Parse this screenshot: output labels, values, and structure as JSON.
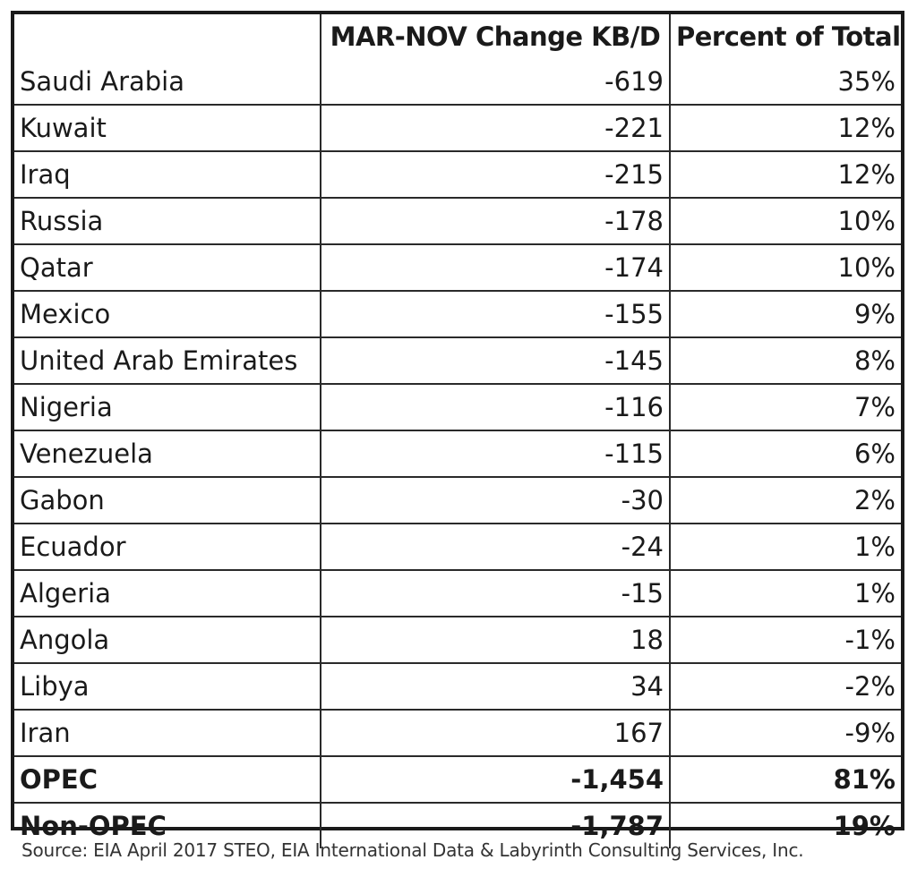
{
  "chart_data": {
    "type": "table",
    "columns": [
      "",
      "MAR-NOV Change KB/D",
      "Percent of Total"
    ],
    "rows": [
      {
        "country": "Saudi Arabia",
        "change": "-619",
        "percent": "35%"
      },
      {
        "country": "Kuwait",
        "change": "-221",
        "percent": "12%"
      },
      {
        "country": "Iraq",
        "change": "-215",
        "percent": "12%"
      },
      {
        "country": "Russia",
        "change": "-178",
        "percent": "10%"
      },
      {
        "country": "Qatar",
        "change": "-174",
        "percent": "10%"
      },
      {
        "country": "Mexico",
        "change": "-155",
        "percent": "9%"
      },
      {
        "country": "United Arab Emirates",
        "change": "-145",
        "percent": "8%"
      },
      {
        "country": "Nigeria",
        "change": "-116",
        "percent": "7%"
      },
      {
        "country": "Venezuela",
        "change": "-115",
        "percent": "6%"
      },
      {
        "country": "Gabon",
        "change": "-30",
        "percent": "2%"
      },
      {
        "country": "Ecuador",
        "change": "-24",
        "percent": "1%"
      },
      {
        "country": "Algeria",
        "change": "-15",
        "percent": "1%"
      },
      {
        "country": "Angola",
        "change": "18",
        "percent": "-1%"
      },
      {
        "country": "Libya",
        "change": "34",
        "percent": "-2%"
      },
      {
        "country": "Iran",
        "change": "167",
        "percent": "-9%"
      }
    ],
    "totals": [
      {
        "country": "OPEC",
        "change": "-1,454",
        "percent": "81%"
      },
      {
        "country": "Non-OPEC",
        "change": "-1,787",
        "percent": "19%"
      }
    ],
    "source": "Source:  EIA April 2017 STEO, EIA International Data & Labyrinth Consulting Services, Inc."
  }
}
